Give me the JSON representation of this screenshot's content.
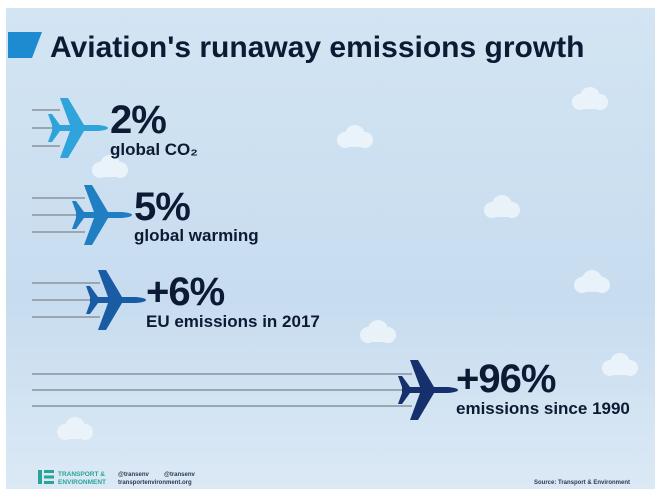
{
  "header": {
    "title": "Aviation's runaway emissions growth"
  },
  "items": [
    {
      "figure": "2%",
      "label": "global CO₂"
    },
    {
      "figure": "5%",
      "label": "global warming"
    },
    {
      "figure": "+6%",
      "label": "EU emissions in 2017"
    },
    {
      "figure": "+96%",
      "label": "emissions since 1990"
    }
  ],
  "footer": {
    "logo_line1": "TRANSPORT &",
    "logo_line2": "ENVIRONMENT",
    "twitter": "@transenv",
    "facebook": "@transenv",
    "website": "transportenvironment.org",
    "source": "Source: Transport & Environment"
  }
}
